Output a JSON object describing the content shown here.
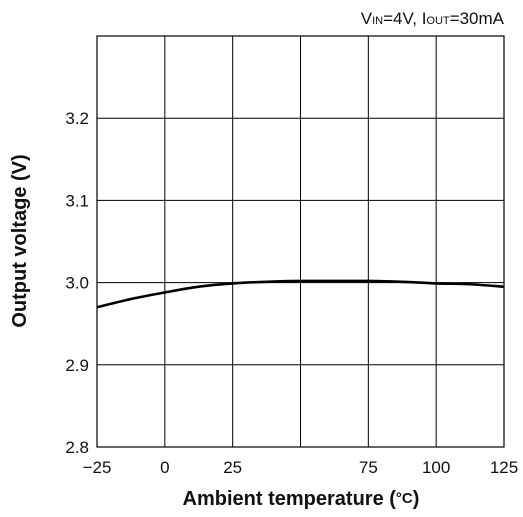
{
  "chart_data": {
    "type": "line",
    "annotation": {
      "v_main": "V",
      "v_sub": "IN",
      "v_value": "=4V, ",
      "i_main": "I",
      "i_sub": "OUT",
      "i_value": "=30mA"
    },
    "xlabel_pre": "Ambient temperature (",
    "xlabel_unit": "°C",
    "xlabel_post": ")",
    "ylabel": "Output voltage (V)",
    "xlim": [
      -25,
      125
    ],
    "ylim": [
      2.8,
      3.3
    ],
    "xticks": [
      -25,
      0,
      25,
      50,
      75,
      100,
      125
    ],
    "xtick_labels": [
      "−25",
      "0",
      "25",
      "",
      "75",
      "100",
      "125"
    ],
    "yticks": [
      2.8,
      2.9,
      3.0,
      3.1,
      3.2
    ],
    "ytick_labels": [
      "2.8",
      "2.9",
      "3.0",
      "3.1",
      "3.2"
    ],
    "grid": true,
    "series": [
      {
        "x": [
          -25,
          -12.5,
          0,
          12.5,
          25,
          37.5,
          50,
          62.5,
          75,
          87.5,
          100,
          112.5,
          125
        ],
        "y": [
          2.97,
          2.98,
          2.988,
          2.995,
          2.999,
          3.001,
          3.002,
          3.002,
          3.002,
          3.001,
          2.999,
          2.998,
          2.995
        ]
      }
    ],
    "colors": {
      "line": "#000000",
      "grid": "#000000"
    }
  }
}
